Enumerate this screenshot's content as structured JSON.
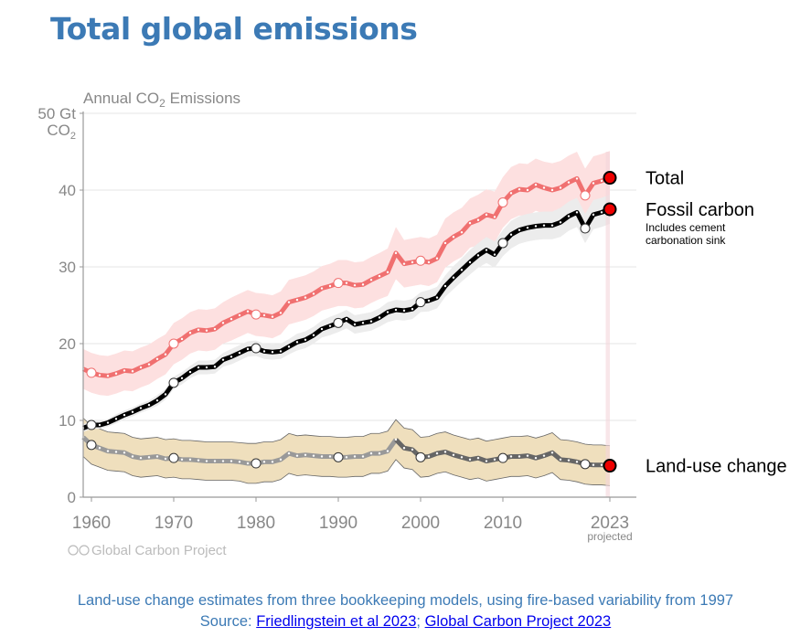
{
  "page": {
    "title": "Total global emissions",
    "footer_line1": "Land-use change estimates from three bookkeeping models, using fire-based variability from 1997",
    "footer_source_label": "Source: ",
    "footer_link1": "Friedlingstein et al 2023",
    "footer_separator": "; ",
    "footer_link2": "Global Carbon Project 2023"
  },
  "colors": {
    "title": "#3c7ab5",
    "total_line": "#f07070",
    "total_band": "#fde0e0",
    "fossil_line": "#000000",
    "fossil_band": "#ececec",
    "luc_line_pre1997": "#999999",
    "luc_line_post1997": "#666666",
    "luc_band": "#efdfbd",
    "endpoint": "#ee0000",
    "axis_text": "#888888"
  },
  "chart_data": {
    "type": "line",
    "title": "Annual CO2 Emissions",
    "ylabel": "Gt CO2",
    "ylim": [
      0,
      50
    ],
    "xlim": [
      1959,
      2023
    ],
    "grid": true,
    "y_ticks": [
      {
        "value": 0,
        "label": "0"
      },
      {
        "value": 10,
        "label": "10"
      },
      {
        "value": 20,
        "label": "20"
      },
      {
        "value": 30,
        "label": "30"
      },
      {
        "value": 40,
        "label": "40"
      },
      {
        "value": 50,
        "label": "50 Gt"
      }
    ],
    "y_unit_label": "CO2",
    "x_ticks": [
      {
        "value": 1960,
        "label": "1960"
      },
      {
        "value": 1970,
        "label": "1970"
      },
      {
        "value": 1980,
        "label": "1980"
      },
      {
        "value": 1990,
        "label": "1990"
      },
      {
        "value": 2000,
        "label": "2000"
      },
      {
        "value": 2010,
        "label": "2010"
      },
      {
        "value": 2023,
        "label": "2023"
      }
    ],
    "projected_label": "projected",
    "watermark": "Global Carbon Project",
    "x": [
      1959,
      1960,
      1961,
      1962,
      1963,
      1964,
      1965,
      1966,
      1967,
      1968,
      1969,
      1970,
      1971,
      1972,
      1973,
      1974,
      1975,
      1976,
      1977,
      1978,
      1979,
      1980,
      1981,
      1982,
      1983,
      1984,
      1985,
      1986,
      1987,
      1988,
      1989,
      1990,
      1991,
      1992,
      1993,
      1994,
      1995,
      1996,
      1997,
      1998,
      1999,
      2000,
      2001,
      2002,
      2003,
      2004,
      2005,
      2006,
      2007,
      2008,
      2009,
      2010,
      2011,
      2012,
      2013,
      2014,
      2015,
      2016,
      2017,
      2018,
      2019,
      2020,
      2021,
      2022,
      2023
    ],
    "series": [
      {
        "name": "Total",
        "values": [
          16.7,
          16.2,
          15.9,
          15.8,
          16.1,
          16.5,
          16.4,
          16.9,
          17.3,
          18.0,
          18.6,
          20.0,
          20.6,
          21.4,
          21.8,
          21.7,
          21.9,
          22.7,
          23.2,
          23.7,
          24.2,
          23.8,
          23.7,
          23.5,
          24.0,
          25.4,
          25.7,
          26.0,
          26.5,
          27.2,
          27.5,
          27.9,
          27.9,
          27.6,
          27.7,
          28.3,
          28.8,
          29.3,
          31.8,
          30.4,
          30.6,
          30.8,
          30.6,
          31.1,
          33.1,
          33.9,
          34.5,
          35.7,
          36.1,
          36.8,
          36.5,
          38.4,
          39.6,
          40.1,
          40.0,
          40.7,
          40.3,
          40.0,
          40.3,
          41.0,
          41.5,
          39.3,
          40.9,
          41.2,
          41.6
        ],
        "band": [
          2.6,
          2.6,
          2.6,
          2.6,
          2.6,
          2.6,
          2.6,
          2.6,
          2.6,
          2.6,
          2.6,
          2.7,
          2.7,
          2.7,
          2.7,
          2.7,
          2.7,
          2.7,
          2.8,
          2.8,
          2.8,
          2.8,
          2.8,
          2.8,
          2.8,
          2.9,
          2.9,
          2.9,
          2.9,
          2.9,
          2.9,
          3.0,
          3.0,
          3.0,
          3.0,
          3.0,
          3.0,
          3.1,
          3.4,
          3.1,
          3.1,
          3.1,
          3.1,
          3.1,
          3.2,
          3.2,
          3.2,
          3.2,
          3.3,
          3.3,
          3.3,
          3.3,
          3.4,
          3.4,
          3.4,
          3.4,
          3.4,
          3.5,
          3.5,
          3.5,
          3.5,
          3.5,
          3.5,
          3.5,
          3.5
        ],
        "highlight_years": [
          1960,
          1970,
          1980,
          1990,
          2000,
          2010,
          2020
        ],
        "label": "Total",
        "sublabel": ""
      },
      {
        "name": "Fossil carbon",
        "values": [
          9.0,
          9.4,
          9.4,
          9.7,
          10.2,
          10.7,
          11.1,
          11.6,
          12.0,
          12.6,
          13.4,
          14.9,
          15.5,
          16.3,
          16.9,
          16.9,
          17.0,
          17.9,
          18.3,
          18.8,
          19.3,
          19.4,
          19.0,
          18.9,
          19.0,
          19.6,
          20.2,
          20.5,
          21.1,
          21.9,
          22.3,
          22.7,
          23.2,
          22.5,
          22.7,
          22.9,
          23.4,
          24.1,
          24.4,
          24.3,
          24.5,
          25.4,
          25.6,
          26.0,
          27.5,
          28.6,
          29.6,
          30.6,
          31.5,
          32.2,
          31.6,
          33.1,
          34.2,
          34.8,
          35.1,
          35.3,
          35.4,
          35.4,
          35.8,
          36.6,
          37.1,
          35.0,
          36.8,
          37.1,
          37.5
        ],
        "band": [
          0.5,
          0.5,
          0.5,
          0.5,
          0.6,
          0.6,
          0.6,
          0.6,
          0.6,
          0.7,
          0.7,
          0.8,
          0.8,
          0.8,
          0.9,
          0.9,
          0.9,
          0.9,
          1.0,
          1.0,
          1.0,
          1.0,
          1.0,
          1.0,
          1.0,
          1.0,
          1.1,
          1.1,
          1.1,
          1.1,
          1.2,
          1.2,
          1.2,
          1.2,
          1.2,
          1.2,
          1.2,
          1.3,
          1.3,
          1.3,
          1.3,
          1.3,
          1.4,
          1.4,
          1.4,
          1.5,
          1.5,
          1.6,
          1.6,
          1.7,
          1.7,
          1.7,
          1.8,
          1.8,
          1.8,
          1.8,
          1.8,
          1.8,
          1.9,
          1.9,
          1.9,
          1.9,
          1.9,
          1.9,
          1.9
        ],
        "highlight_years": [
          1960,
          1970,
          1980,
          1990,
          2000,
          2010,
          2020
        ],
        "label": "Fossil carbon",
        "sublabel": [
          "Includes cement",
          "carbonation sink"
        ]
      },
      {
        "name": "Land-use change",
        "values": [
          7.8,
          6.8,
          6.4,
          6.0,
          5.9,
          5.8,
          5.3,
          5.1,
          5.2,
          5.3,
          5.0,
          5.1,
          4.9,
          4.9,
          4.8,
          4.7,
          4.7,
          4.7,
          4.7,
          4.6,
          4.4,
          4.4,
          4.6,
          4.6,
          4.9,
          5.7,
          5.4,
          5.5,
          5.4,
          5.3,
          5.3,
          5.2,
          5.2,
          5.3,
          5.3,
          5.7,
          5.7,
          6.0,
          7.5,
          6.4,
          6.2,
          5.2,
          5.3,
          5.7,
          5.9,
          5.5,
          5.2,
          4.9,
          5.1,
          4.7,
          4.9,
          5.1,
          5.3,
          5.3,
          5.4,
          5.1,
          5.4,
          5.8,
          4.9,
          4.8,
          4.6,
          4.3,
          4.2,
          4.2,
          4.1
        ],
        "band": [
          2.5,
          2.5,
          2.5,
          2.5,
          2.5,
          2.5,
          2.5,
          2.5,
          2.5,
          2.5,
          2.5,
          2.5,
          2.5,
          2.5,
          2.5,
          2.5,
          2.5,
          2.5,
          2.5,
          2.5,
          2.6,
          2.6,
          2.6,
          2.6,
          2.6,
          2.6,
          2.6,
          2.6,
          2.6,
          2.6,
          2.6,
          2.6,
          2.6,
          2.6,
          2.6,
          2.6,
          2.6,
          2.6,
          2.6,
          2.6,
          2.6,
          2.6,
          2.6,
          2.6,
          2.6,
          2.6,
          2.6,
          2.6,
          2.6,
          2.6,
          2.6,
          2.6,
          2.6,
          2.6,
          2.6,
          2.6,
          2.6,
          2.6,
          2.6,
          2.6,
          2.6,
          2.6,
          2.6,
          2.6,
          2.6
        ],
        "highlight_years": [
          1960,
          1970,
          1980,
          1990,
          2000,
          2010,
          2020
        ],
        "fire_variability_from": 1997,
        "label": "Land-use change",
        "sublabel": ""
      }
    ]
  }
}
